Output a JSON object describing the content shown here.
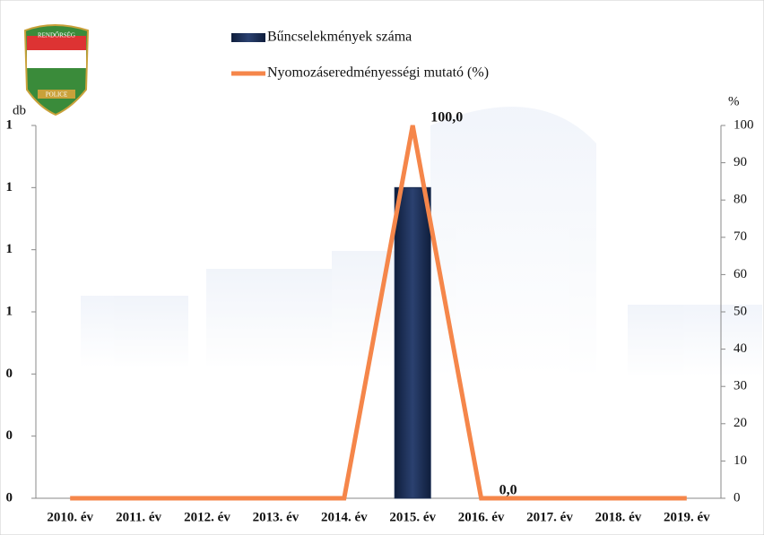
{
  "logo": {
    "top": "RENDŐRSÉG",
    "bottom": "POLICE"
  },
  "chart_data": {
    "type": "bar",
    "y_label": "db",
    "y2_label": "%",
    "categories": [
      "2010. év",
      "2011. év",
      "2012. év",
      "2013. év",
      "2014. év",
      "2015. év",
      "2016. év",
      "2017. év",
      "2018. év",
      "2019. év"
    ],
    "series": [
      {
        "name": "Bűncselekmények száma",
        "type": "bar",
        "color": "#1b2d52",
        "values": [
          0,
          0,
          0,
          0,
          0,
          1,
          0,
          0,
          0,
          0
        ]
      },
      {
        "name": "Nyomozáseredményességi mutató (%)",
        "type": "line",
        "axis": "y2",
        "color": "#f5864a",
        "values": [
          0,
          0,
          0,
          0,
          0,
          100,
          0,
          0,
          0,
          0
        ],
        "value_labels": [
          null,
          null,
          null,
          null,
          null,
          "100,0",
          "0,0",
          null,
          null,
          null
        ]
      }
    ],
    "ylim": [
      0,
      1.2
    ],
    "yticks": [
      0,
      {
        "value": 0.2,
        "label": "0"
      },
      {
        "value": 0.4,
        "label": "0"
      },
      {
        "value": 0.6,
        "label": "1"
      },
      {
        "value": 0.8,
        "label": "1"
      },
      1,
      {
        "value": 1.2,
        "label": "1"
      }
    ],
    "y2lim": [
      0,
      100
    ],
    "y2ticks": [
      0,
      10,
      20,
      30,
      40,
      50,
      60,
      70,
      80,
      90,
      100
    ]
  }
}
